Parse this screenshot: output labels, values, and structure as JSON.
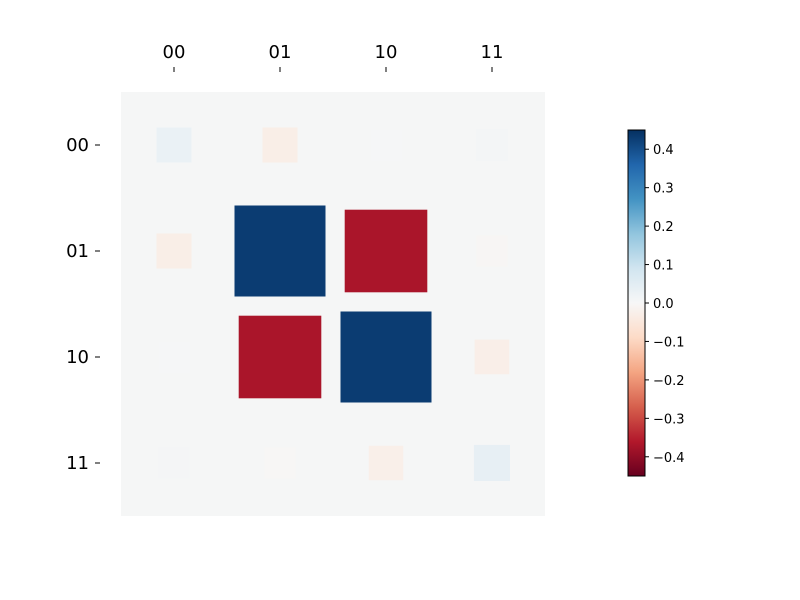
{
  "chart_data": {
    "type": "hinton",
    "title": "",
    "row_labels": [
      "00",
      "01",
      "10",
      "11"
    ],
    "col_labels": [
      "00",
      "01",
      "10",
      "11"
    ],
    "max_abs": 0.45,
    "values": [
      [
        0.03,
        -0.03,
        0.005,
        0.01
      ],
      [
        -0.03,
        0.43,
        -0.37,
        -0.006
      ],
      [
        0.005,
        -0.37,
        0.43,
        -0.028
      ],
      [
        0.008,
        -0.004,
        -0.026,
        0.038
      ]
    ],
    "colorbar": {
      "min": -0.45,
      "max": 0.45,
      "ticks": [
        0.4,
        0.3,
        0.2,
        0.1,
        0.0,
        -0.1,
        -0.2,
        -0.3,
        -0.4
      ],
      "tick_labels": [
        "0.4",
        "0.3",
        "0.2",
        "0.1",
        "0.0",
        "−0.1",
        "−0.2",
        "−0.3",
        "−0.4"
      ],
      "colormap": "RdBu"
    },
    "background_color": "#f5f6f6"
  }
}
